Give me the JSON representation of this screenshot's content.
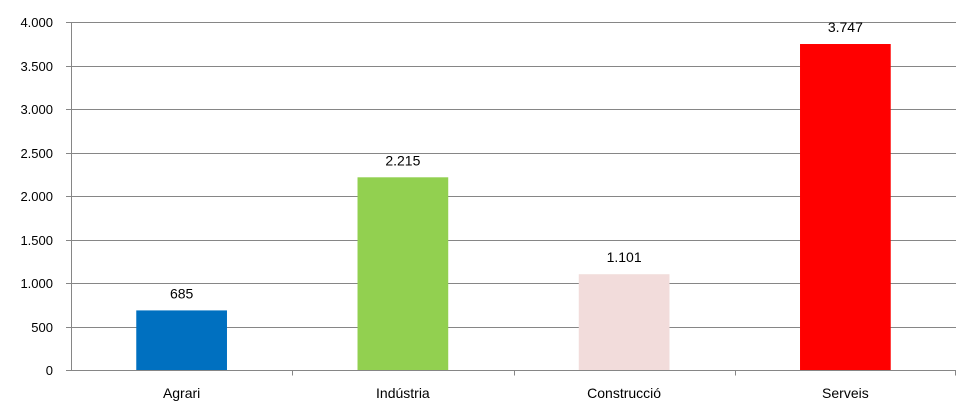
{
  "chart_data": {
    "type": "bar",
    "title": "",
    "xlabel": "",
    "ylabel": "",
    "categories": [
      "Agrari",
      "Indústria",
      "Construcció",
      "Serveis"
    ],
    "values": [
      685,
      2215,
      1101,
      3747
    ],
    "value_labels": [
      "685",
      "2.215",
      "1.101",
      "3.747"
    ],
    "colors": [
      "#0070c0",
      "#92d050",
      "#f2dcdb",
      "#ff0000"
    ],
    "ylim": [
      0,
      4000
    ],
    "yticks": [
      0,
      500,
      1000,
      1500,
      2000,
      2500,
      3000,
      3500,
      4000
    ],
    "ytick_labels": [
      "0",
      "500",
      "1.000",
      "1.500",
      "2.000",
      "2.500",
      "3.000",
      "3.500",
      "4.000"
    ],
    "grid": true,
    "legend": "none"
  }
}
